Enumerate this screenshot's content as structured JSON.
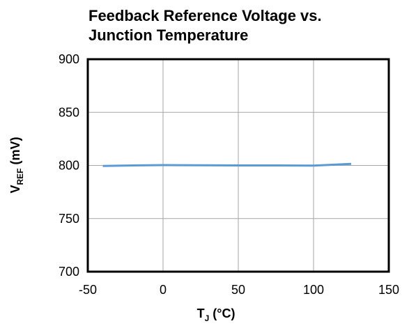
{
  "chart_data": {
    "type": "line",
    "title": [
      "Feedback Reference Voltage vs.",
      "Junction Temperature"
    ],
    "x_label": [
      "T",
      "J",
      " (°C)"
    ],
    "y_label": [
      "V",
      "REF",
      " (mV)"
    ],
    "x": [
      -40,
      -20,
      0,
      25,
      50,
      75,
      100,
      125
    ],
    "series": [
      {
        "name": "VREF",
        "color": "#5b9bd5",
        "values": [
          799.5,
          800,
          800.3,
          800.2,
          800,
          800,
          799.8,
          801.5
        ]
      }
    ],
    "xlim": [
      -50,
      150
    ],
    "xticks": [
      -50,
      0,
      50,
      100,
      150
    ],
    "ylim": [
      700,
      900
    ],
    "yticks": [
      700,
      750,
      800,
      850,
      900
    ],
    "grid": true
  }
}
